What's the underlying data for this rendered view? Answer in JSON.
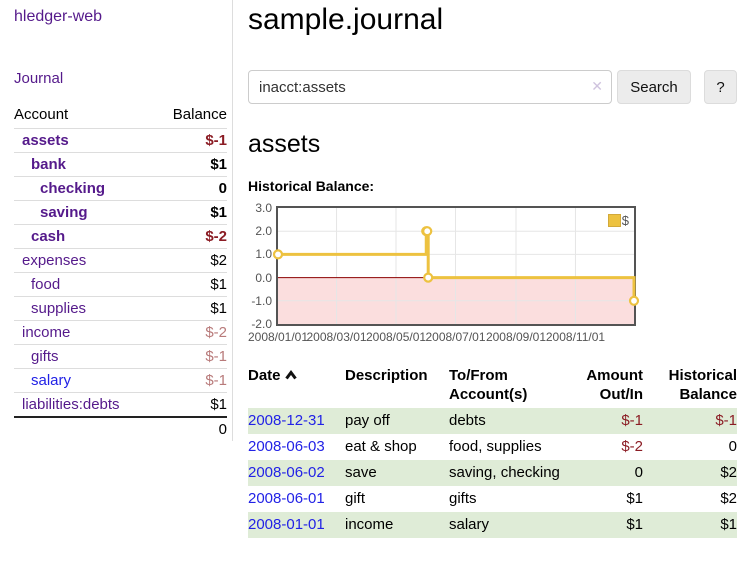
{
  "app": {
    "title": "hledger-web"
  },
  "sidebar": {
    "nav_journal": "Journal",
    "table": {
      "headers": {
        "account": "Account",
        "balance": "Balance"
      },
      "accounts": [
        {
          "name": "assets",
          "balance": "$-1"
        },
        {
          "name": "bank",
          "balance": "$1"
        },
        {
          "name": "checking",
          "balance": "0"
        },
        {
          "name": "saving",
          "balance": "$1"
        },
        {
          "name": "cash",
          "balance": "$-2"
        },
        {
          "name": "expenses",
          "balance": "$2"
        },
        {
          "name": "food",
          "balance": "$1"
        },
        {
          "name": "supplies",
          "balance": "$1"
        },
        {
          "name": "income",
          "balance": "$-2"
        },
        {
          "name": "gifts",
          "balance": "$-1"
        },
        {
          "name": "salary",
          "balance": "$-1"
        },
        {
          "name": "liabilities:debts",
          "balance": "$1"
        }
      ],
      "total": "0"
    }
  },
  "main": {
    "title": "sample.journal",
    "search": {
      "value": "inacct:assets",
      "clear_icon": "✕",
      "button": "Search",
      "help_button": "?"
    },
    "account_heading": "assets",
    "chart_label": "Historical Balance:"
  },
  "chart_data": {
    "type": "line",
    "step": true,
    "title": "Historical Balance",
    "series": [
      {
        "name": "$",
        "color": "#edc240",
        "points": [
          [
            "2008-01-01",
            1
          ],
          [
            "2008-06-01",
            2
          ],
          [
            "2008-06-02",
            2
          ],
          [
            "2008-06-03",
            0
          ],
          [
            "2008-12-31",
            -1
          ]
        ]
      }
    ],
    "xlim": [
      "2008-01-01",
      "2008-12-31"
    ],
    "ylim": [
      -2,
      3
    ],
    "x_ticks": [
      "2008/01/01",
      "2008/03/01",
      "2008/05/01",
      "2008/07/01",
      "2008/09/01",
      "2008/11/01"
    ],
    "y_ticks": [
      3.0,
      2.0,
      1.0,
      0.0,
      -1.0,
      -2.0
    ],
    "grid": true,
    "legend_position": "top-right",
    "negative_region_color": "#fbdede",
    "zero_line_color": "#8b0000",
    "grid_color": "#e6e6e6"
  },
  "register_table": {
    "headers": {
      "date": "Date",
      "description": "Description",
      "tofrom_line1": "To/From",
      "tofrom_line2": "Account(s)",
      "amount_line1": "Amount",
      "amount_line2": "Out/In",
      "balance_line1": "Historical",
      "balance_line2": "Balance"
    },
    "rows": [
      {
        "date": "2008-12-31",
        "description": "pay off",
        "accounts": "debts",
        "amount": "$-1",
        "balance": "$-1"
      },
      {
        "date": "2008-06-03",
        "description": "eat & shop",
        "accounts": "food, supplies",
        "amount": "$-2",
        "balance": "0"
      },
      {
        "date": "2008-06-02",
        "description": "save",
        "accounts": "saving, checking",
        "amount": "0",
        "balance": "$2"
      },
      {
        "date": "2008-06-01",
        "description": "gift",
        "accounts": "gifts",
        "amount": "$1",
        "balance": "$2"
      },
      {
        "date": "2008-01-01",
        "description": "income",
        "accounts": "salary",
        "amount": "$1",
        "balance": "$1"
      }
    ]
  },
  "colors": {
    "link_visited_purple": "#551a8b",
    "link_blue": "#2222e6",
    "negative_strong": "#8b1c24",
    "negative_dim": "#b87a7a",
    "row_stripe_green": "#dfecd7",
    "chart_line_gold": "#edc240",
    "chart_negative_fill": "#fbdede",
    "chart_zero_line": "#8b0000",
    "chart_border": "#545454"
  }
}
